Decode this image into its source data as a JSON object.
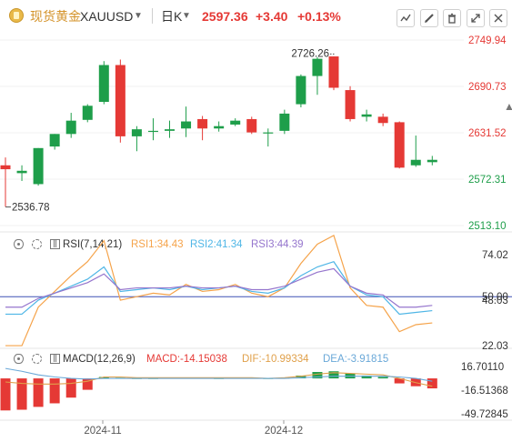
{
  "header": {
    "name": "现货黄金",
    "symbol": "XAUUSD",
    "period": "日K",
    "price": "2597.36",
    "change": "+3.40",
    "change_pct": "+0.13%",
    "tools": [
      "draw-tool-icon",
      "pencil-icon",
      "trash-icon",
      "fullscreen-icon",
      "close-icon"
    ]
  },
  "colors": {
    "up": "#e53935",
    "down": "#1e9e4a",
    "rsi1": "#f5a34a",
    "rsi2": "#4fb6e6",
    "rsi3": "#9575cd",
    "macd_dif": "#e0a04a",
    "macd_dea": "#6aa8d8",
    "axis_text": "#333333",
    "ref_line": "#3f51b5"
  },
  "rsi_legend": {
    "title": "RSI(7,14,21)",
    "rsi1": "RSI1:34.43",
    "rsi2": "RSI2:41.34",
    "rsi3": "RSI3:44.39"
  },
  "macd_legend": {
    "title": "MACD(12,26,9)",
    "macd": "MACD:-14.15038",
    "dif": "DIF:-10.99334",
    "dea": "DEA:-3.91815"
  },
  "chart_data": [
    {
      "type": "candlestick",
      "name": "price",
      "yticks": [
        "2749.94",
        "2690.73",
        "2631.52",
        "2572.31",
        "2513.10"
      ],
      "ylim": [
        2513.1,
        2749.94
      ],
      "annotations": {
        "high_label": "2726.26",
        "low_label": "2536.78"
      },
      "candles": [
        {
          "o": 2590,
          "h": 2600,
          "l": 2537,
          "c": 2585
        },
        {
          "o": 2580,
          "h": 2590,
          "l": 2570,
          "c": 2583
        },
        {
          "o": 2566,
          "h": 2612,
          "l": 2564,
          "c": 2612
        },
        {
          "o": 2614,
          "h": 2630,
          "l": 2610,
          "c": 2630
        },
        {
          "o": 2630,
          "h": 2657,
          "l": 2625,
          "c": 2647
        },
        {
          "o": 2648,
          "h": 2668,
          "l": 2645,
          "c": 2666
        },
        {
          "o": 2671,
          "h": 2723,
          "l": 2668,
          "c": 2718
        },
        {
          "o": 2718,
          "h": 2725,
          "l": 2619,
          "c": 2627
        },
        {
          "o": 2627,
          "h": 2640,
          "l": 2608,
          "c": 2636
        },
        {
          "o": 2634,
          "h": 2650,
          "l": 2622,
          "c": 2634
        },
        {
          "o": 2634,
          "h": 2647,
          "l": 2625,
          "c": 2636
        },
        {
          "o": 2637,
          "h": 2665,
          "l": 2626,
          "c": 2646
        },
        {
          "o": 2649,
          "h": 2653,
          "l": 2622,
          "c": 2637
        },
        {
          "o": 2637,
          "h": 2646,
          "l": 2633,
          "c": 2640
        },
        {
          "o": 2642,
          "h": 2650,
          "l": 2640,
          "c": 2647
        },
        {
          "o": 2649,
          "h": 2652,
          "l": 2630,
          "c": 2632
        },
        {
          "o": 2631,
          "h": 2637,
          "l": 2614,
          "c": 2632
        },
        {
          "o": 2634,
          "h": 2661,
          "l": 2630,
          "c": 2656
        },
        {
          "o": 2668,
          "h": 2706,
          "l": 2664,
          "c": 2704
        },
        {
          "o": 2704,
          "h": 2728,
          "l": 2680,
          "c": 2726
        },
        {
          "o": 2729,
          "h": 2729,
          "l": 2686,
          "c": 2689
        },
        {
          "o": 2686,
          "h": 2691,
          "l": 2646,
          "c": 2649
        },
        {
          "o": 2652,
          "h": 2661,
          "l": 2646,
          "c": 2655
        },
        {
          "o": 2652,
          "h": 2656,
          "l": 2640,
          "c": 2644
        },
        {
          "o": 2645,
          "h": 2646,
          "l": 2586,
          "c": 2587
        },
        {
          "o": 2590,
          "h": 2628,
          "l": 2588,
          "c": 2597
        },
        {
          "o": 2594,
          "h": 2602,
          "l": 2590,
          "c": 2597
        }
      ]
    },
    {
      "type": "line",
      "name": "RSI",
      "yticks": [
        "74.02",
        "48.03",
        "22.03"
      ],
      "ref_line_label": "50.00",
      "ylim": [
        22.03,
        74.02
      ],
      "series": [
        {
          "name": "RSI1",
          "color": "#f5a34a",
          "values": [
            22,
            22,
            44,
            53,
            62,
            70,
            82,
            48,
            50,
            52,
            51,
            57,
            53,
            54,
            57,
            52,
            50,
            55,
            69,
            80,
            85,
            55,
            45,
            44,
            30,
            34,
            35
          ]
        },
        {
          "name": "RSI2",
          "color": "#4fb6e6",
          "values": [
            40,
            40,
            48,
            52,
            56,
            60,
            67,
            53,
            54,
            55,
            54,
            56,
            54,
            55,
            56,
            53,
            52,
            55,
            62,
            67,
            70,
            56,
            51,
            50,
            40,
            41,
            42
          ]
        },
        {
          "name": "RSI3",
          "color": "#9575cd",
          "values": [
            44,
            44,
            49,
            52,
            55,
            58,
            63,
            54,
            55,
            55,
            55,
            56,
            55,
            55,
            56,
            54,
            54,
            56,
            60,
            64,
            66,
            56,
            52,
            51,
            44,
            44,
            45
          ]
        }
      ]
    },
    {
      "type": "bar",
      "name": "MACD",
      "yticks": [
        "16.70110",
        "-16.51368",
        "-49.72845"
      ],
      "ylim": [
        -49.72845,
        16.7011
      ],
      "histogram": [
        -45,
        -44,
        -40,
        -35,
        -27,
        -16,
        2,
        1,
        0.5,
        0.5,
        1,
        1,
        1,
        0.5,
        1,
        1,
        0.5,
        1,
        4,
        9,
        10,
        7,
        4,
        2,
        -7,
        -11,
        -14
      ],
      "series": [
        {
          "name": "DIF",
          "color": "#e0a04a",
          "values": [
            -5,
            -7,
            -8,
            -8,
            -7,
            -4,
            2,
            2,
            1,
            1,
            1,
            1,
            1,
            1,
            1,
            1,
            0,
            1,
            3,
            6,
            8,
            7,
            6,
            5,
            0,
            -6,
            -11
          ]
        },
        {
          "name": "DEA",
          "color": "#6aa8d8",
          "values": [
            14,
            10,
            5,
            2,
            0,
            -1,
            0,
            0,
            0,
            0,
            0,
            0,
            0,
            0,
            0,
            0,
            0,
            0,
            1,
            2,
            3,
            3,
            3,
            3,
            2,
            0,
            -4
          ]
        }
      ]
    }
  ],
  "xaxis": {
    "labels": [
      "2024-11",
      "2024-12"
    ]
  }
}
